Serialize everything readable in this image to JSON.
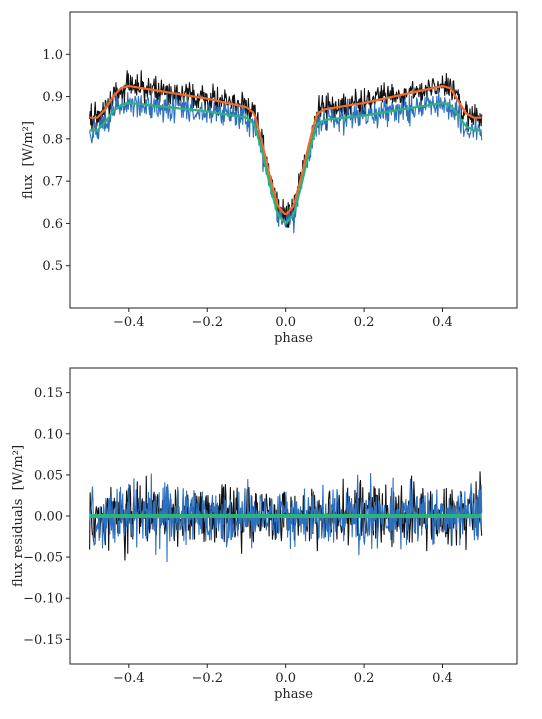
{
  "chart_data": [
    {
      "type": "line",
      "title": "",
      "xlabel": "phase",
      "ylabel": "flux",
      "ylabel_unit": "[W/m²]",
      "xlim": [
        -0.55,
        0.59
      ],
      "ylim": [
        0.4,
        1.1
      ],
      "xticks": [
        -0.4,
        -0.2,
        0.0,
        0.2,
        0.4
      ],
      "xtick_labels": [
        "−0.4",
        "−0.2",
        "0.0",
        "0.2",
        "0.4"
      ],
      "yticks": [
        0.5,
        0.6,
        0.7,
        0.8,
        0.9,
        1.0
      ],
      "ytick_labels": [
        "0.5",
        "0.6",
        "0.7",
        "0.8",
        "0.9",
        "1.0"
      ],
      "grid": false,
      "noise_amplitude": 0.04,
      "series": [
        {
          "style": "noisy-data",
          "color": "#111111",
          "x": [
            -0.5,
            -0.48,
            -0.46,
            -0.44,
            -0.42,
            -0.4,
            -0.3,
            -0.2,
            -0.1,
            -0.08,
            -0.06,
            -0.04,
            -0.02,
            0.0,
            0.02,
            0.04,
            0.06,
            0.08,
            0.1,
            0.2,
            0.3,
            0.4,
            0.42,
            0.44,
            0.46,
            0.48,
            0.5
          ],
          "values": [
            0.85,
            0.85,
            0.87,
            0.9,
            0.92,
            0.925,
            0.91,
            0.895,
            0.875,
            0.86,
            0.79,
            0.71,
            0.64,
            0.62,
            0.64,
            0.71,
            0.79,
            0.86,
            0.87,
            0.885,
            0.905,
            0.925,
            0.92,
            0.89,
            0.86,
            0.85,
            0.85
          ]
        },
        {
          "style": "noisy-data",
          "color": "#2e6fbe",
          "x": [
            -0.5,
            -0.48,
            -0.46,
            -0.44,
            -0.42,
            -0.4,
            -0.3,
            -0.2,
            -0.1,
            -0.08,
            -0.06,
            -0.04,
            -0.02,
            0.0,
            0.02,
            0.04,
            0.06,
            0.08,
            0.1,
            0.2,
            0.3,
            0.4,
            0.42,
            0.44,
            0.46,
            0.48,
            0.5
          ],
          "values": [
            0.82,
            0.82,
            0.84,
            0.865,
            0.88,
            0.885,
            0.875,
            0.865,
            0.85,
            0.835,
            0.77,
            0.69,
            0.62,
            0.6,
            0.62,
            0.69,
            0.77,
            0.835,
            0.845,
            0.855,
            0.87,
            0.885,
            0.88,
            0.855,
            0.83,
            0.82,
            0.82
          ]
        },
        {
          "style": "model",
          "color": "#f06a2a",
          "x": [
            -0.5,
            -0.48,
            -0.46,
            -0.44,
            -0.42,
            -0.4,
            -0.3,
            -0.2,
            -0.1,
            -0.08,
            -0.06,
            -0.04,
            -0.02,
            0.0,
            0.02,
            0.04,
            0.06,
            0.08,
            0.1,
            0.2,
            0.3,
            0.4,
            0.42,
            0.44,
            0.46,
            0.48,
            0.5
          ],
          "values": [
            0.85,
            0.85,
            0.87,
            0.9,
            0.92,
            0.925,
            0.91,
            0.895,
            0.875,
            0.86,
            0.79,
            0.71,
            0.64,
            0.62,
            0.64,
            0.71,
            0.79,
            0.86,
            0.87,
            0.885,
            0.905,
            0.925,
            0.92,
            0.89,
            0.86,
            0.85,
            0.85
          ]
        },
        {
          "style": "model",
          "color": "#2bb37a",
          "x": [
            -0.5,
            -0.48,
            -0.46,
            -0.44,
            -0.42,
            -0.4,
            -0.3,
            -0.2,
            -0.1,
            -0.08,
            -0.06,
            -0.04,
            -0.02,
            0.0,
            0.02,
            0.04,
            0.06,
            0.08,
            0.1,
            0.2,
            0.3,
            0.4,
            0.42,
            0.44,
            0.46,
            0.48,
            0.5
          ],
          "values": [
            0.82,
            0.82,
            0.84,
            0.865,
            0.88,
            0.885,
            0.875,
            0.865,
            0.85,
            0.835,
            0.77,
            0.69,
            0.62,
            0.6,
            0.62,
            0.69,
            0.77,
            0.835,
            0.845,
            0.855,
            0.87,
            0.885,
            0.88,
            0.855,
            0.83,
            0.82,
            0.82
          ]
        }
      ]
    },
    {
      "type": "line",
      "title": "",
      "xlabel": "phase",
      "ylabel": "flux residuals",
      "ylabel_unit": "[W/m²]",
      "xlim": [
        -0.55,
        0.59
      ],
      "ylim": [
        -0.18,
        0.18
      ],
      "xticks": [
        -0.4,
        -0.2,
        0.0,
        0.2,
        0.4
      ],
      "xtick_labels": [
        "−0.4",
        "−0.2",
        "0.0",
        "0.2",
        "0.4"
      ],
      "yticks": [
        -0.15,
        -0.1,
        -0.05,
        0.0,
        0.05,
        0.1,
        0.15
      ],
      "ytick_labels": [
        "−0.15",
        "−0.10",
        "−0.05",
        "0.00",
        "0.05",
        "0.10",
        "0.15"
      ],
      "grid": false,
      "noise_amplitude": 0.045,
      "series": [
        {
          "style": "noisy-data",
          "color": "#111111",
          "x": [
            -0.5,
            0.5
          ],
          "values": [
            0.0,
            0.0
          ]
        },
        {
          "style": "noisy-data",
          "color": "#2e6fbe",
          "x": [
            -0.5,
            0.5
          ],
          "values": [
            0.0,
            0.0
          ]
        },
        {
          "style": "model",
          "color": "#2bb37a",
          "x": [
            -0.5,
            0.5
          ],
          "values": [
            0.0,
            0.0
          ]
        }
      ]
    }
  ]
}
